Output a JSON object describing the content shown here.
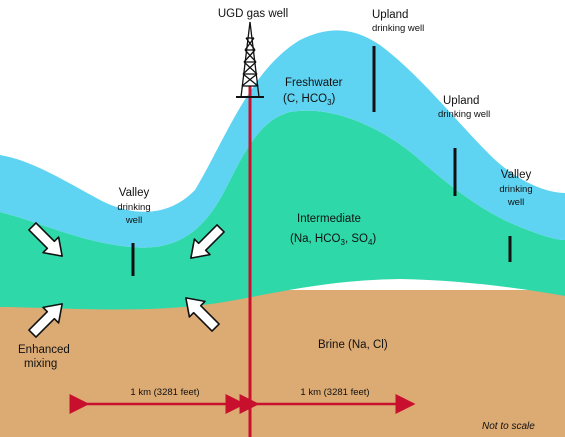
{
  "colors": {
    "freshwater": "#5fd3f2",
    "intermediate": "#2fd8a9",
    "brine": "#dcaa73",
    "gas_well": "#c8102e",
    "arrow": "#c8102e",
    "drinking_well": "#111111"
  },
  "labels": {
    "gas_well": "UGD gas well",
    "upland_top": {
      "line1": "Upland",
      "line2": "drinking well"
    },
    "upland_right": {
      "line1": "Upland",
      "line2": "drinking well"
    },
    "valley_right": {
      "line1": "Valley",
      "line2": "drinking",
      "line3": "well"
    },
    "valley_left": {
      "line1": "Valley",
      "line2": "drinking",
      "line3": "well"
    },
    "freshwater": {
      "line1": "Freshwater",
      "line2": "(C, HCO",
      "sub": "3",
      "end": ")"
    },
    "intermediate": {
      "line1": "Intermediate",
      "line2_a": "(Na, HCO",
      "line2_sub1": "3",
      "line2_b": ", SO",
      "line2_sub2": "4",
      "line2_c": ")"
    },
    "brine": "Brine (Na, Cl)",
    "enhanced_mixing": {
      "line1": "Enhanced",
      "line2": "mixing"
    },
    "distance_left": "1 km (3281 feet)",
    "distance_right": "1 km (3281 feet)",
    "not_to_scale": "Not to scale"
  },
  "icons": [
    "gas-derrick-icon",
    "mixing-arrow-icon"
  ]
}
